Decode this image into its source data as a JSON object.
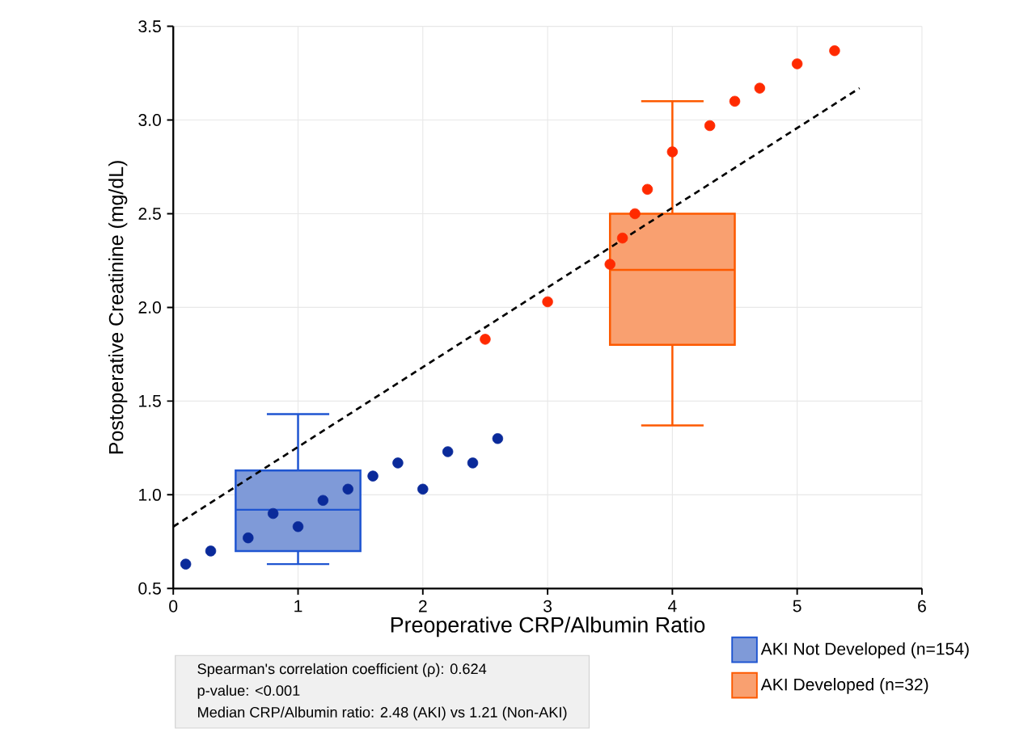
{
  "chart_data": {
    "type": "scatter",
    "xlabel": "Preoperative CRP/Albumin Ratio",
    "ylabel": "Postoperative Creatinine (mg/dL)",
    "xlim": [
      0,
      6
    ],
    "ylim": [
      0.5,
      3.5
    ],
    "xticks": [
      0,
      1,
      2,
      3,
      4,
      5,
      6
    ],
    "yticks": [
      0.5,
      {
        "value": 1,
        "label": "1.0"
      },
      1.5,
      {
        "value": 2,
        "label": "2.0"
      },
      2.5,
      {
        "value": 3,
        "label": "3.0"
      },
      3.5
    ],
    "grid": true,
    "legend": "bottom right",
    "annotations": [
      "Spearman's correlation coefficient (ρ): 0.624",
      "p-value: <0.001",
      "Median CRP/Albumin ratio: 2.48 (AKI) vs 1.21 (Non-AKI)"
    ],
    "series": [
      {
        "type": "box",
        "name": "AKI Not Developed (n=154)",
        "color": "#7f9ad8",
        "x": [
          1
        ],
        "boxes": [
          {
            "low": 0.63,
            "q1": 0.7,
            "median": 0.92,
            "q3": 1.13,
            "high": 1.43
          }
        ]
      },
      {
        "type": "box",
        "name": "AKI Developed (n=32)",
        "color": "#f9a070",
        "x": [
          4
        ],
        "boxes": [
          {
            "low": 1.37,
            "q1": 1.8,
            "median": 2.2,
            "q3": 2.5,
            "high": 3.1
          }
        ]
      },
      {
        "color": "#0a2a9a",
        "marker": "circle",
        "x": [
          0.1,
          0.3,
          0.6,
          0.8,
          1.0,
          1.2,
          1.4,
          1.6,
          1.8,
          2.0,
          2.2,
          2.4,
          2.6
        ],
        "values": [
          0.63,
          0.7,
          0.77,
          0.9,
          0.83,
          0.97,
          1.03,
          1.1,
          1.17,
          1.03,
          1.23,
          1.17,
          1.3
        ]
      },
      {
        "color": "#ff2a00",
        "marker": "circle",
        "x": [
          2.5,
          3.0,
          3.5,
          3.6,
          3.7,
          3.8,
          4.0,
          4.3,
          4.5,
          4.7,
          5.0,
          5.3
        ],
        "values": [
          1.83,
          2.03,
          2.23,
          2.37,
          2.5,
          2.63,
          2.83,
          2.97,
          3.1,
          3.17,
          3.3,
          3.37
        ]
      },
      {
        "type": "line",
        "color": "#000000",
        "line_style": "dashed",
        "marker": "none",
        "x": [
          0,
          5.5
        ],
        "values": [
          0.83,
          3.17
        ]
      }
    ]
  }
}
